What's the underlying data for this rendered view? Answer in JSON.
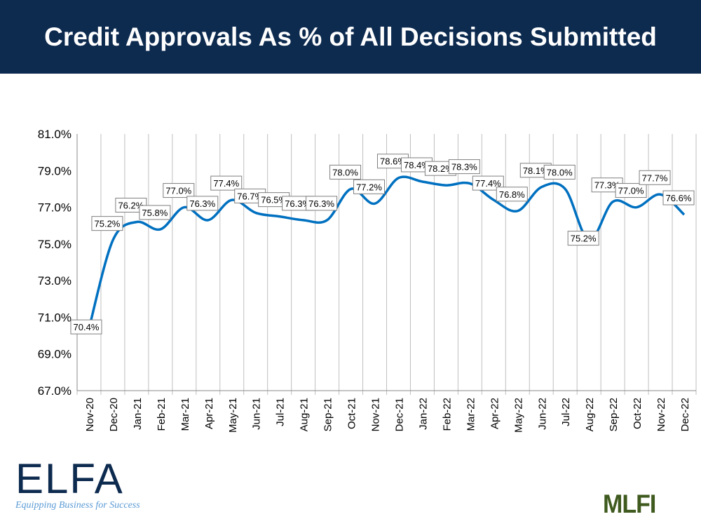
{
  "title": "Credit Approvals As % of All Decisions Submitted",
  "chart_data": {
    "type": "line",
    "title": "Credit Approvals As % of All Decisions Submitted",
    "xlabel": "",
    "ylabel": "",
    "categories": [
      "Nov-20",
      "Dec-20",
      "Jan-21",
      "Feb-21",
      "Mar-21",
      "Apr-21",
      "May-21",
      "Jun-21",
      "Jul-21",
      "Aug-21",
      "Sep-21",
      "Oct-21",
      "Nov-21",
      "Dec-21",
      "Jan-22",
      "Feb-22",
      "Mar-22",
      "Apr-22",
      "May-22",
      "Jun-22",
      "Jul-22",
      "Aug-22",
      "Sep-22",
      "Oct-22",
      "Nov-22",
      "Dec-22"
    ],
    "values": [
      70.4,
      75.2,
      76.2,
      75.8,
      77.0,
      76.3,
      77.4,
      76.7,
      76.5,
      76.3,
      76.3,
      78.0,
      77.2,
      78.6,
      78.4,
      78.2,
      78.3,
      77.4,
      76.8,
      78.1,
      78.0,
      75.2,
      77.3,
      77.0,
      77.7,
      76.6
    ],
    "ylim": [
      67.0,
      81.0
    ],
    "yticks": [
      "67.0%",
      "69.0%",
      "71.0%",
      "73.0%",
      "75.0%",
      "77.0%",
      "79.0%",
      "81.0%"
    ],
    "grid": "vertical",
    "line_color": "#0070c0",
    "smooth": true
  },
  "logos": {
    "elfa": "ELFA",
    "elfa_tagline": "Equipping Business for Success",
    "mlfi": "MLFI"
  }
}
